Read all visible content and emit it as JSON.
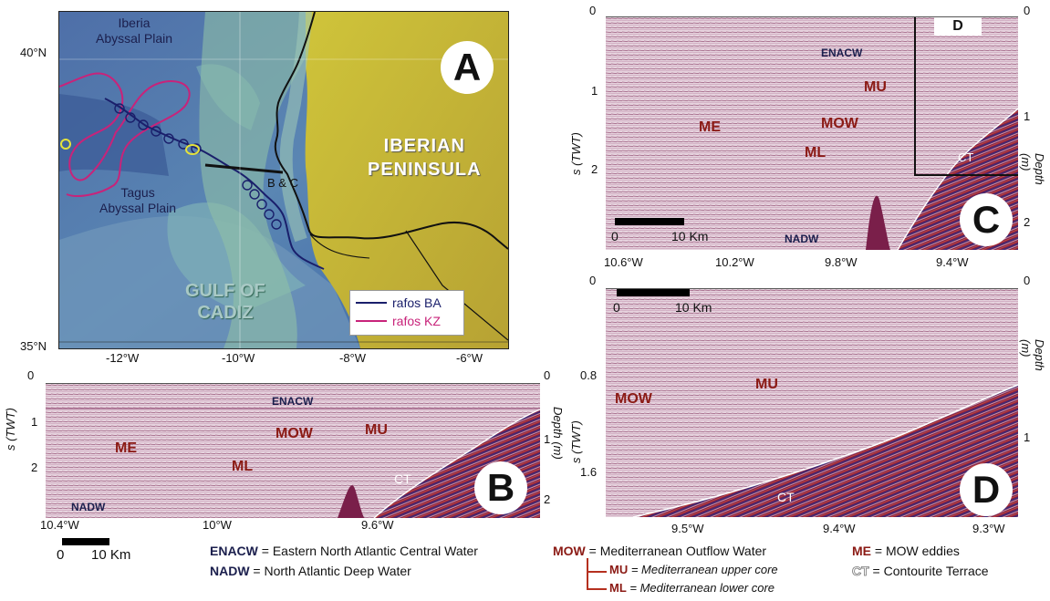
{
  "panel_a": {
    "letter": "A",
    "labels": {
      "iberia": "Iberia\nAbyssal Plain",
      "tagus": "Tagus\nAbyssal Plain",
      "peninsula": "IBERIAN\nPENINSULA",
      "gulf": "GULF OF\nCADIZ",
      "section": "B & C"
    },
    "lat_ticks": [
      "40°N",
      "35°N"
    ],
    "lon_ticks": [
      "-12°W",
      "-10°W",
      "-8°W",
      "-6°W"
    ],
    "legend": [
      {
        "label": "rafos BA",
        "color": "#1a1f6b"
      },
      {
        "label": "rafos KZ",
        "color": "#c8237a"
      }
    ]
  },
  "panel_b": {
    "letter": "B",
    "left_axis_title": "s (TWT)",
    "right_axis_title": "Depth (m)",
    "left_ticks": [
      "0",
      "1",
      "2"
    ],
    "right_ticks": [
      "0",
      "1",
      "2"
    ],
    "x_ticks": [
      "10.4°W",
      "10°W",
      "9.6°W"
    ],
    "scale_zero": "0",
    "scale_label": "10 Km",
    "labels": {
      "enacw": "ENACW",
      "me": "ME",
      "mow": "MOW",
      "mu": "MU",
      "ml": "ML",
      "ct": "CT",
      "nadw": "NADW"
    }
  },
  "panel_c": {
    "letter": "C",
    "left_axis_title": "s (TWT)",
    "right_axis_title": "Depth (m)",
    "left_ticks": [
      "0",
      "1",
      "2"
    ],
    "right_ticks": [
      "0",
      "1",
      "2"
    ],
    "x_ticks": [
      "10.6°W",
      "10.2°W",
      "9.8°W",
      "9.4°W"
    ],
    "scale_zero": "0",
    "scale_label": "10 Km",
    "box_label": "D",
    "labels": {
      "enacw": "ENACW",
      "me": "ME",
      "mow": "MOW",
      "mu": "MU",
      "ml": "ML",
      "ct": "CT",
      "nadw": "NADW"
    }
  },
  "panel_d": {
    "letter": "D",
    "left_axis_title": "s (TWT)",
    "right_axis_title": "Depth (m)",
    "left_ticks": [
      "0",
      "0.8",
      "1.6"
    ],
    "right_ticks": [
      "0",
      "1"
    ],
    "x_ticks": [
      "9.5°W",
      "9.4°W",
      "9.3°W"
    ],
    "scale_zero": "0",
    "scale_label": "10 Km",
    "labels": {
      "mow": "MOW",
      "mu": "MU",
      "ct": "CT"
    }
  },
  "key": {
    "enacw": {
      "abbr": "ENACW",
      "text": " = Eastern North Atlantic Central Water"
    },
    "nadw": {
      "abbr": "NADW",
      "text": " = North Atlantic Deep Water"
    },
    "mow": {
      "abbr": "MOW",
      "text": " = Mediterranean Outflow Water"
    },
    "mu": {
      "abbr": "MU",
      "text": " = Mediterranean upper core"
    },
    "ml": {
      "abbr": "ML",
      "text": " = Mediterranean lower core"
    },
    "me": {
      "abbr": "ME",
      "text": " = MOW eddies"
    },
    "ct": {
      "abbr": "CT",
      "text": " = Contourite Terrace"
    }
  },
  "colors": {
    "navy": "#1b1f4d",
    "red": "#8b1a14",
    "seismic_bg": "#d9bfcf",
    "seafloor": "#7a1f4a"
  }
}
